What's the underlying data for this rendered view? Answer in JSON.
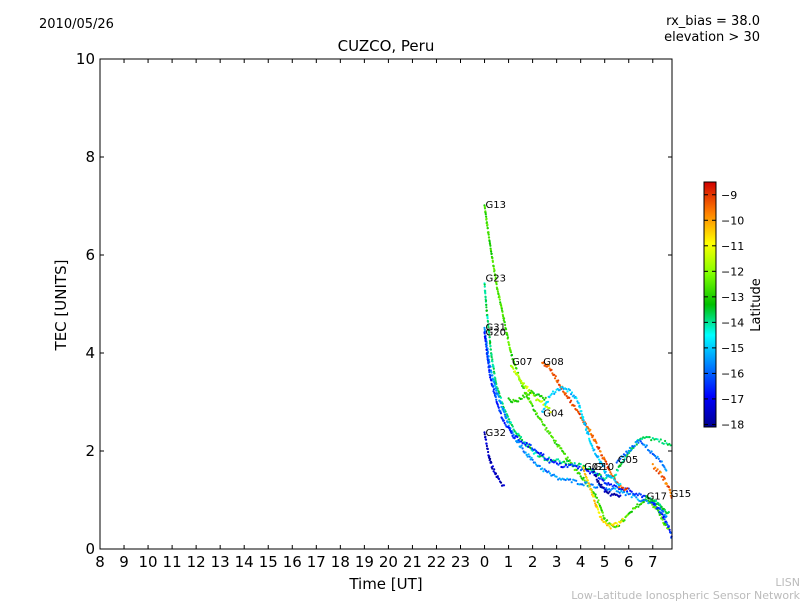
{
  "header": {
    "date": "2010/05/26",
    "rx_bias": "rx_bias = 38.0",
    "elevation": "elevation > 30"
  },
  "credit": {
    "line1": "LISN",
    "line2": "Low-Latitude Ionospheric Sensor Network"
  },
  "chart_data": {
    "type": "scatter",
    "title": "CUZCO, Peru",
    "xlabel": "Time [UT]",
    "ylabel": "TEC [UNITS]",
    "x_ticks": [
      "8",
      "9",
      "10",
      "11",
      "12",
      "13",
      "14",
      "15",
      "16",
      "17",
      "18",
      "19",
      "20",
      "21",
      "22",
      "23",
      "0",
      "1",
      "2",
      "3",
      "4",
      "5",
      "6",
      "7"
    ],
    "x_range_hours": [
      8,
      31.8
    ],
    "ylim": [
      0,
      10
    ],
    "y_ticks": [
      0,
      2,
      4,
      6,
      8,
      10
    ],
    "colorbar": {
      "label": "Latitude",
      "range": [
        -18.1,
        -8.5
      ],
      "ticks": [
        -9,
        -10,
        -11,
        -12,
        -13,
        -14,
        -15,
        -16,
        -17,
        -18
      ]
    },
    "satellite_labels": [
      {
        "name": "G13",
        "x": 24.0,
        "y": 7.0
      },
      {
        "name": "G23",
        "x": 24.0,
        "y": 5.5
      },
      {
        "name": "G31",
        "x": 24.0,
        "y": 4.5
      },
      {
        "name": "G20",
        "x": 24.0,
        "y": 4.4
      },
      {
        "name": "G07",
        "x": 25.1,
        "y": 3.8
      },
      {
        "name": "G08",
        "x": 26.4,
        "y": 3.8
      },
      {
        "name": "G04",
        "x": 26.4,
        "y": 2.75
      },
      {
        "name": "G32",
        "x": 24.0,
        "y": 2.35
      },
      {
        "name": "G05",
        "x": 29.5,
        "y": 1.8
      },
      {
        "name": "G02",
        "x": 28.1,
        "y": 1.65
      },
      {
        "name": "G10",
        "x": 28.5,
        "y": 1.65
      },
      {
        "name": "G17",
        "x": 30.7,
        "y": 1.05
      },
      {
        "name": "G15",
        "x": 31.7,
        "y": 1.1
      }
    ],
    "series": [
      {
        "name": "G13",
        "lat": -12.7,
        "points": [
          [
            24.0,
            7.0
          ],
          [
            24.2,
            6.3
          ],
          [
            24.5,
            5.4
          ],
          [
            24.8,
            4.7
          ],
          [
            25.1,
            4.0
          ],
          [
            25.5,
            3.4
          ],
          [
            26.0,
            2.9
          ],
          [
            26.5,
            2.5
          ],
          [
            27.0,
            2.15
          ],
          [
            27.5,
            1.8
          ],
          [
            28.0,
            1.5
          ],
          [
            28.5,
            1.2
          ],
          [
            28.8,
            0.9
          ],
          [
            29.0,
            0.6
          ],
          [
            29.3,
            0.45
          ],
          [
            29.6,
            0.5
          ],
          [
            30.0,
            0.7
          ],
          [
            30.4,
            0.9
          ],
          [
            30.8,
            1.0
          ],
          [
            31.2,
            0.8
          ],
          [
            31.5,
            0.5
          ],
          [
            31.7,
            0.4
          ]
        ]
      },
      {
        "name": "G23",
        "lat": -13.8,
        "points": [
          [
            24.0,
            5.4
          ],
          [
            24.1,
            4.8
          ],
          [
            24.3,
            3.9
          ],
          [
            24.5,
            3.3
          ],
          [
            24.8,
            2.9
          ],
          [
            25.1,
            2.55
          ],
          [
            25.6,
            2.2
          ],
          [
            26.0,
            2.0
          ],
          [
            26.5,
            1.85
          ],
          [
            27.0,
            1.8
          ],
          [
            27.5,
            1.75
          ],
          [
            28.0,
            1.7
          ],
          [
            28.5,
            1.6
          ],
          [
            29.0,
            1.45
          ],
          [
            29.4,
            1.5
          ],
          [
            29.8,
            1.8
          ],
          [
            30.2,
            2.1
          ],
          [
            30.6,
            2.3
          ],
          [
            31.0,
            2.25
          ],
          [
            31.4,
            2.2
          ],
          [
            31.8,
            2.1
          ]
        ]
      },
      {
        "name": "G31",
        "lat": -15.5,
        "points": [
          [
            24.0,
            4.5
          ],
          [
            24.2,
            3.8
          ],
          [
            24.5,
            3.2
          ],
          [
            24.8,
            2.8
          ],
          [
            25.1,
            2.4
          ],
          [
            25.5,
            2.1
          ],
          [
            26.0,
            1.8
          ],
          [
            26.5,
            1.6
          ],
          [
            27.0,
            1.45
          ],
          [
            27.5,
            1.4
          ],
          [
            28.0,
            1.35
          ],
          [
            28.5,
            1.3
          ],
          [
            29.0,
            1.25
          ],
          [
            29.5,
            1.2
          ],
          [
            30.0,
            1.1
          ],
          [
            30.5,
            1.0
          ],
          [
            31.0,
            0.95
          ],
          [
            31.3,
            0.85
          ],
          [
            31.6,
            0.6
          ]
        ]
      },
      {
        "name": "G20",
        "lat": -16.5,
        "points": [
          [
            24.0,
            4.4
          ],
          [
            24.2,
            3.6
          ],
          [
            24.5,
            3.0
          ],
          [
            24.8,
            2.6
          ],
          [
            25.2,
            2.3
          ],
          [
            25.7,
            2.15
          ],
          [
            26.2,
            2.0
          ],
          [
            26.7,
            1.8
          ],
          [
            27.2,
            1.7
          ],
          [
            27.7,
            1.7
          ],
          [
            28.2,
            1.6
          ],
          [
            28.7,
            1.5
          ],
          [
            29.2,
            1.3
          ],
          [
            29.6,
            1.25
          ],
          [
            30.0,
            1.2
          ],
          [
            30.5,
            1.1
          ],
          [
            31.0,
            0.95
          ],
          [
            31.4,
            0.7
          ],
          [
            31.7,
            0.4
          ],
          [
            31.8,
            0.2
          ]
        ]
      },
      {
        "name": "G07",
        "lat": -11.5,
        "points": [
          [
            25.1,
            3.75
          ],
          [
            25.3,
            3.6
          ],
          [
            25.6,
            3.4
          ],
          [
            25.9,
            3.2
          ],
          [
            26.2,
            3.05
          ],
          [
            26.5,
            2.95
          ],
          [
            26.8,
            2.8
          ]
        ]
      },
      {
        "name": "G07b",
        "lat": -13.0,
        "points": [
          [
            25.0,
            3.05
          ],
          [
            25.3,
            3.0
          ],
          [
            25.6,
            3.1
          ],
          [
            25.9,
            3.2
          ],
          [
            26.2,
            3.15
          ],
          [
            26.6,
            3.05
          ]
        ]
      },
      {
        "name": "G08",
        "lat": -9.3,
        "points": [
          [
            26.4,
            3.8
          ],
          [
            26.6,
            3.75
          ],
          [
            26.9,
            3.55
          ],
          [
            27.2,
            3.3
          ],
          [
            27.6,
            3.0
          ],
          [
            28.0,
            2.7
          ],
          [
            28.4,
            2.4
          ],
          [
            28.8,
            2.0
          ],
          [
            29.2,
            1.6
          ],
          [
            29.6,
            1.3
          ],
          [
            30.0,
            1.2
          ]
        ]
      },
      {
        "name": "G04",
        "lat": -15.0,
        "points": [
          [
            26.4,
            2.8
          ],
          [
            26.7,
            3.1
          ],
          [
            27.0,
            3.25
          ],
          [
            27.3,
            3.3
          ],
          [
            27.6,
            3.2
          ],
          [
            27.9,
            3.0
          ],
          [
            28.2,
            2.5
          ],
          [
            28.5,
            2.05
          ],
          [
            28.8,
            1.8
          ],
          [
            29.1,
            1.5
          ],
          [
            29.4,
            1.4
          ],
          [
            29.7,
            1.3
          ]
        ]
      },
      {
        "name": "G32",
        "lat": -17.6,
        "points": [
          [
            24.0,
            2.35
          ],
          [
            24.1,
            2.1
          ],
          [
            24.2,
            1.85
          ],
          [
            24.3,
            1.7
          ],
          [
            24.45,
            1.55
          ],
          [
            24.6,
            1.4
          ],
          [
            24.85,
            1.25
          ]
        ]
      },
      {
        "name": "G02",
        "lat": -10.5,
        "points": [
          [
            28.1,
            1.65
          ],
          [
            28.3,
            1.4
          ],
          [
            28.5,
            1.1
          ],
          [
            28.7,
            0.8
          ],
          [
            28.9,
            0.55
          ],
          [
            29.2,
            0.45
          ],
          [
            29.5,
            0.5
          ],
          [
            29.8,
            0.6
          ]
        ]
      },
      {
        "name": "G10",
        "lat": -17.8,
        "points": [
          [
            28.5,
            1.6
          ],
          [
            28.7,
            1.4
          ],
          [
            28.9,
            1.25
          ],
          [
            29.1,
            1.15
          ],
          [
            29.4,
            1.1
          ],
          [
            29.7,
            1.05
          ]
        ]
      },
      {
        "name": "G05",
        "lat": -15.8,
        "points": [
          [
            29.5,
            1.8
          ],
          [
            29.8,
            1.9
          ],
          [
            30.1,
            2.05
          ],
          [
            30.4,
            2.2
          ],
          [
            30.7,
            2.1
          ],
          [
            31.0,
            1.95
          ],
          [
            31.3,
            1.8
          ],
          [
            31.6,
            1.6
          ]
        ]
      },
      {
        "name": "G17",
        "lat": -13.5,
        "points": [
          [
            30.7,
            1.05
          ],
          [
            30.9,
            1.0
          ],
          [
            31.1,
            0.95
          ],
          [
            31.3,
            0.9
          ],
          [
            31.5,
            0.8
          ],
          [
            31.7,
            0.7
          ]
        ]
      },
      {
        "name": "G15",
        "lat": -9.5,
        "points": [
          [
            31.0,
            1.7
          ],
          [
            31.3,
            1.55
          ],
          [
            31.5,
            1.4
          ],
          [
            31.7,
            1.2
          ],
          [
            31.8,
            1.05
          ]
        ]
      }
    ]
  }
}
